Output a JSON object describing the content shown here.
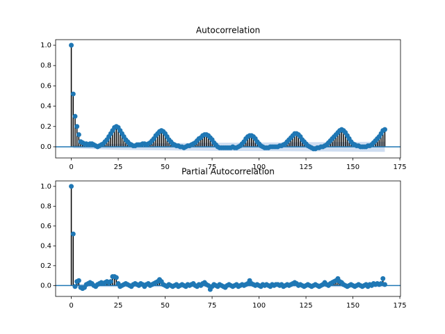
{
  "chart_data": [
    {
      "type": "stem",
      "title": "Autocorrelation",
      "color": "#1f77b4",
      "stem_color": "#000000",
      "band_color": "#aec7e8",
      "x": [
        0,
        1,
        2,
        3,
        4,
        5,
        6,
        7,
        8,
        9,
        10,
        11,
        12,
        13,
        14,
        15,
        16,
        17,
        18,
        19,
        20,
        21,
        22,
        23,
        24,
        25,
        26,
        27,
        28,
        29,
        30,
        31,
        32,
        33,
        34,
        35,
        36,
        37,
        38,
        39,
        40,
        41,
        42,
        43,
        44,
        45,
        46,
        47,
        48,
        49,
        50,
        51,
        52,
        53,
        54,
        55,
        56,
        57,
        58,
        59,
        60,
        61,
        62,
        63,
        64,
        65,
        66,
        67,
        68,
        69,
        70,
        71,
        72,
        73,
        74,
        75,
        76,
        77,
        78,
        79,
        80,
        81,
        82,
        83,
        84,
        85,
        86,
        87,
        88,
        89,
        90,
        91,
        92,
        93,
        94,
        95,
        96,
        97,
        98,
        99,
        100,
        101,
        102,
        103,
        104,
        105,
        106,
        107,
        108,
        109,
        110,
        111,
        112,
        113,
        114,
        115,
        116,
        117,
        118,
        119,
        120,
        121,
        122,
        123,
        124,
        125,
        126,
        127,
        128,
        129,
        130,
        131,
        132,
        133,
        134,
        135,
        136,
        137,
        138,
        139,
        140,
        141,
        142,
        143,
        144,
        145,
        146,
        147,
        148,
        149,
        150,
        151,
        152,
        153,
        154,
        155,
        156,
        157,
        158,
        159,
        160,
        161,
        162,
        163,
        164,
        165,
        166,
        167
      ],
      "values": [
        1.0,
        0.52,
        0.3,
        0.2,
        0.12,
        0.05,
        0.04,
        0.03,
        0.03,
        0.02,
        0.03,
        0.03,
        0.02,
        0.01,
        0.0,
        0.01,
        0.02,
        0.03,
        0.05,
        0.07,
        0.1,
        0.13,
        0.16,
        0.19,
        0.2,
        0.19,
        0.16,
        0.13,
        0.1,
        0.07,
        0.05,
        0.03,
        0.02,
        0.01,
        0.01,
        0.02,
        0.02,
        0.02,
        0.03,
        0.03,
        0.02,
        0.03,
        0.04,
        0.06,
        0.08,
        0.11,
        0.13,
        0.15,
        0.16,
        0.15,
        0.13,
        0.1,
        0.07,
        0.05,
        0.03,
        0.02,
        0.01,
        0.01,
        0.0,
        0.0,
        -0.01,
        0.0,
        0.01,
        0.01,
        0.02,
        0.03,
        0.04,
        0.06,
        0.08,
        0.09,
        0.11,
        0.12,
        0.12,
        0.11,
        0.09,
        0.07,
        0.04,
        0.02,
        0.0,
        -0.01,
        -0.01,
        -0.01,
        -0.01,
        -0.01,
        -0.01,
        -0.01,
        0.0,
        -0.01,
        -0.01,
        0.0,
        0.01,
        0.03,
        0.05,
        0.08,
        0.1,
        0.11,
        0.11,
        0.1,
        0.08,
        0.05,
        0.03,
        0.01,
        0.0,
        -0.01,
        -0.01,
        -0.01,
        0.0,
        0.0,
        0.0,
        0.0,
        0.0,
        0.01,
        0.01,
        0.02,
        0.03,
        0.05,
        0.07,
        0.09,
        0.11,
        0.13,
        0.13,
        0.12,
        0.1,
        0.07,
        0.05,
        0.03,
        0.01,
        0.0,
        -0.01,
        -0.02,
        -0.02,
        -0.01,
        -0.01,
        0.0,
        0.0,
        0.01,
        0.02,
        0.04,
        0.06,
        0.08,
        0.1,
        0.12,
        0.14,
        0.16,
        0.17,
        0.16,
        0.14,
        0.11,
        0.08,
        0.05,
        0.03,
        0.02,
        0.01,
        0.01,
        0.0,
        0.0,
        0.0,
        0.0,
        0.01,
        0.01,
        0.02,
        0.04,
        0.06,
        0.08,
        0.1,
        0.13,
        0.16,
        0.17
      ],
      "band": {
        "x": [
          1,
          25,
          50,
          75,
          100,
          125,
          150,
          167
        ],
        "halfwidth": [
          0.015,
          0.03,
          0.035,
          0.04,
          0.042,
          0.045,
          0.048,
          0.05
        ]
      },
      "xlim": [
        -8.35,
        175.35
      ],
      "ylim": [
        -0.11,
        1.055
      ],
      "xticks": [
        0,
        25,
        50,
        75,
        100,
        125,
        150,
        175
      ],
      "yticks": [
        {
          "value": 0,
          "label": "0.0"
        },
        0.2,
        0.4,
        0.6,
        0.8,
        {
          "value": 1,
          "label": "1.0"
        }
      ]
    },
    {
      "type": "stem",
      "title": "Partial Autocorrelation",
      "color": "#1f77b4",
      "stem_color": "#000000",
      "band_color": "#aec7e8",
      "x": [
        0,
        1,
        2,
        3,
        4,
        5,
        6,
        7,
        8,
        9,
        10,
        11,
        12,
        13,
        14,
        15,
        16,
        17,
        18,
        19,
        20,
        21,
        22,
        23,
        24,
        25,
        26,
        27,
        28,
        29,
        30,
        31,
        32,
        33,
        34,
        35,
        36,
        37,
        38,
        39,
        40,
        41,
        42,
        43,
        44,
        45,
        46,
        47,
        48,
        49,
        50,
        51,
        52,
        53,
        54,
        55,
        56,
        57,
        58,
        59,
        60,
        61,
        62,
        63,
        64,
        65,
        66,
        67,
        68,
        69,
        70,
        71,
        72,
        73,
        74,
        75,
        76,
        77,
        78,
        79,
        80,
        81,
        82,
        83,
        84,
        85,
        86,
        87,
        88,
        89,
        90,
        91,
        92,
        93,
        94,
        95,
        96,
        97,
        98,
        99,
        100,
        101,
        102,
        103,
        104,
        105,
        106,
        107,
        108,
        109,
        110,
        111,
        112,
        113,
        114,
        115,
        116,
        117,
        118,
        119,
        120,
        121,
        122,
        123,
        124,
        125,
        126,
        127,
        128,
        129,
        130,
        131,
        132,
        133,
        134,
        135,
        136,
        137,
        138,
        139,
        140,
        141,
        142,
        143,
        144,
        145,
        146,
        147,
        148,
        149,
        150,
        151,
        152,
        153,
        154,
        155,
        156,
        157,
        158,
        159,
        160,
        161,
        162,
        163,
        164,
        165,
        166,
        167
      ],
      "values": [
        1.0,
        0.52,
        -0.01,
        0.04,
        0.05,
        -0.02,
        -0.03,
        -0.02,
        0.01,
        0.02,
        0.03,
        0.02,
        0.0,
        -0.01,
        0.01,
        0.02,
        0.03,
        0.02,
        0.03,
        0.04,
        0.03,
        0.04,
        0.09,
        0.09,
        0.08,
        0.02,
        -0.01,
        0.0,
        0.01,
        0.02,
        0.01,
        0.0,
        -0.01,
        0.01,
        0.02,
        0.01,
        0.0,
        0.02,
        0.01,
        -0.01,
        0.01,
        0.02,
        0.0,
        0.01,
        0.02,
        0.03,
        0.04,
        0.06,
        0.04,
        0.01,
        0.0,
        -0.01,
        0.01,
        0.0,
        -0.01,
        0.0,
        0.01,
        -0.01,
        0.0,
        0.01,
        0.0,
        -0.01,
        0.01,
        0.0,
        0.01,
        0.02,
        0.0,
        -0.01,
        0.01,
        0.0,
        0.02,
        0.03,
        0.01,
        0.0,
        -0.04,
        -0.01,
        0.01,
        0.0,
        -0.01,
        0.01,
        0.0,
        -0.01,
        -0.02,
        0.0,
        0.01,
        0.0,
        -0.01,
        0.0,
        0.01,
        -0.01,
        0.0,
        0.01,
        0.0,
        0.01,
        0.02,
        0.05,
        0.02,
        0.01,
        0.0,
        0.01,
        0.0,
        -0.01,
        0.01,
        0.0,
        0.01,
        0.0,
        -0.01,
        0.01,
        0.0,
        0.01,
        0.01,
        0.0,
        0.01,
        -0.01,
        0.0,
        0.01,
        0.0,
        0.01,
        0.02,
        0.03,
        0.02,
        0.0,
        0.01,
        0.0,
        -0.01,
        0.0,
        0.01,
        0.0,
        -0.01,
        0.0,
        0.01,
        0.0,
        -0.01,
        0.0,
        0.01,
        0.03,
        0.01,
        0.0,
        0.02,
        0.03,
        0.04,
        0.05,
        0.07,
        0.04,
        0.03,
        0.01,
        0.0,
        -0.01,
        0.0,
        0.01,
        0.0,
        -0.01,
        0.0,
        0.01,
        0.0,
        -0.01,
        0.0,
        0.01,
        -0.01,
        0.01,
        0.0,
        0.02,
        0.01,
        0.02,
        0.01,
        0.02,
        0.07,
        0.01
      ],
      "band": {
        "x": [
          1,
          167
        ],
        "halfwidth": [
          0.015,
          0.015
        ]
      },
      "xlim": [
        -8.35,
        175.35
      ],
      "ylim": [
        -0.11,
        1.055
      ],
      "xticks": [
        0,
        25,
        50,
        75,
        100,
        125,
        150,
        175
      ],
      "yticks": [
        {
          "value": 0,
          "label": "0.0"
        },
        0.2,
        0.4,
        0.6,
        0.8,
        {
          "value": 1,
          "label": "1.0"
        }
      ]
    }
  ]
}
